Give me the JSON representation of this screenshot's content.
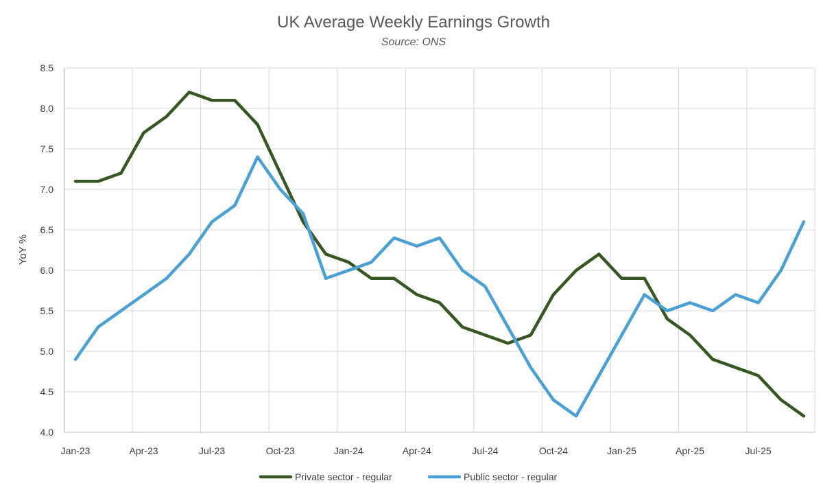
{
  "chart_data": {
    "type": "line",
    "title": "UK Average Weekly Earnings Growth",
    "subtitle": "Source: ONS",
    "xlabel": "",
    "ylabel": "YoY %",
    "ylim": [
      4.0,
      8.5
    ],
    "yticks": [
      "4.0",
      "4.5",
      "5.0",
      "5.5",
      "6.0",
      "6.5",
      "7.0",
      "7.5",
      "8.0",
      "8.5"
    ],
    "x": [
      "Jan-23",
      "Feb-23",
      "Mar-23",
      "Apr-23",
      "May-23",
      "Jun-23",
      "Jul-23",
      "Aug-23",
      "Sep-23",
      "Oct-23",
      "Nov-23",
      "Dec-23",
      "Jan-24",
      "Feb-24",
      "Mar-24",
      "Apr-24",
      "May-24",
      "Jun-24",
      "Jul-24",
      "Aug-24",
      "Sep-24",
      "Oct-24",
      "Nov-24",
      "Dec-24",
      "Jan-25",
      "Feb-25",
      "Mar-25",
      "Apr-25",
      "May-25",
      "Jun-25",
      "Jul-25",
      "Aug-25",
      "Sep-25"
    ],
    "xtick_labels": [
      "Jan-23",
      "Apr-23",
      "Jul-23",
      "Oct-23",
      "Jan-24",
      "Apr-24",
      "Jul-24",
      "Oct-24",
      "Jan-25",
      "Apr-25",
      "Jul-25"
    ],
    "grid": true,
    "legend_position": "bottom",
    "series": [
      {
        "name": "Private sector - regular",
        "color": "#375623",
        "values": [
          7.1,
          7.1,
          7.2,
          7.7,
          7.9,
          8.2,
          8.1,
          8.1,
          7.8,
          7.2,
          6.6,
          6.2,
          6.1,
          5.9,
          5.9,
          5.7,
          5.6,
          5.3,
          5.2,
          5.1,
          5.2,
          5.7,
          6.0,
          6.2,
          5.9,
          5.9,
          5.4,
          5.2,
          4.9,
          4.8,
          4.7,
          4.4,
          4.2
        ]
      },
      {
        "name": "Public sector - regular",
        "color": "#4ba0d3",
        "values": [
          4.9,
          5.3,
          5.5,
          5.7,
          5.9,
          6.2,
          6.6,
          6.8,
          7.4,
          7.0,
          6.7,
          5.9,
          6.0,
          6.1,
          6.4,
          6.3,
          6.4,
          6.0,
          5.8,
          5.3,
          4.8,
          4.4,
          4.2,
          4.7,
          5.2,
          5.7,
          5.5,
          5.6,
          5.5,
          5.7,
          5.6,
          6.0,
          6.6
        ]
      }
    ]
  }
}
